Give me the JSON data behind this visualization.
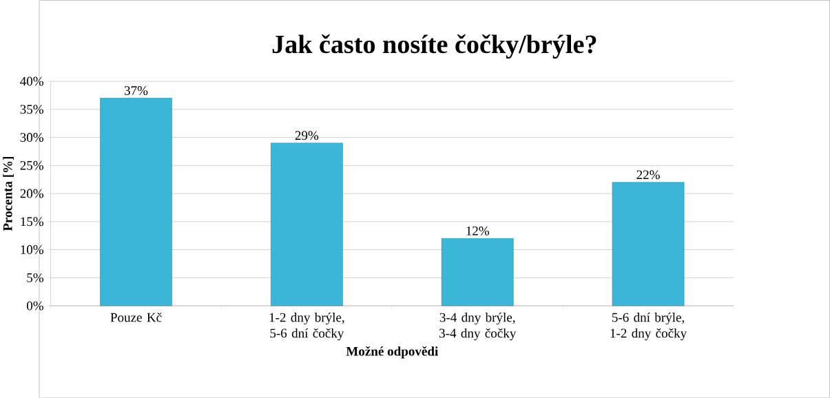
{
  "chart_data": {
    "type": "bar",
    "title": "**Jak často nosíte čočky/brýle?**",
    "xlabel": "Možné odpovědi",
    "ylabel": "Procenta [%]",
    "categories": [
      "Pouze Kč",
      "1-2 dny brýle,  5-6 dní čočky",
      "3-4 dny brýle,  3-4 dny čočky",
      "5-6 dní brýle,  1-2 dny čočky"
    ],
    "values": [
      37,
      29,
      12,
      22
    ],
    "value_labels": [
      "37%",
      "29%",
      "12%",
      "22%"
    ],
    "color": "#3cb6d6",
    "ylim": [
      0,
      40
    ],
    "yticks": [
      {
        "value": 0,
        "label": "0%"
      },
      {
        "value": 5,
        "label": "5%"
      },
      {
        "value": 10,
        "label": "10%"
      },
      {
        "value": 15,
        "label": "15%"
      },
      {
        "value": 20,
        "label": "20%"
      },
      {
        "value": 25,
        "label": "25%"
      },
      {
        "value": 30,
        "label": "30%"
      },
      {
        "value": 35,
        "label": "35%"
      },
      {
        "value": 40,
        "label": "40%"
      }
    ],
    "grid": "y"
  }
}
